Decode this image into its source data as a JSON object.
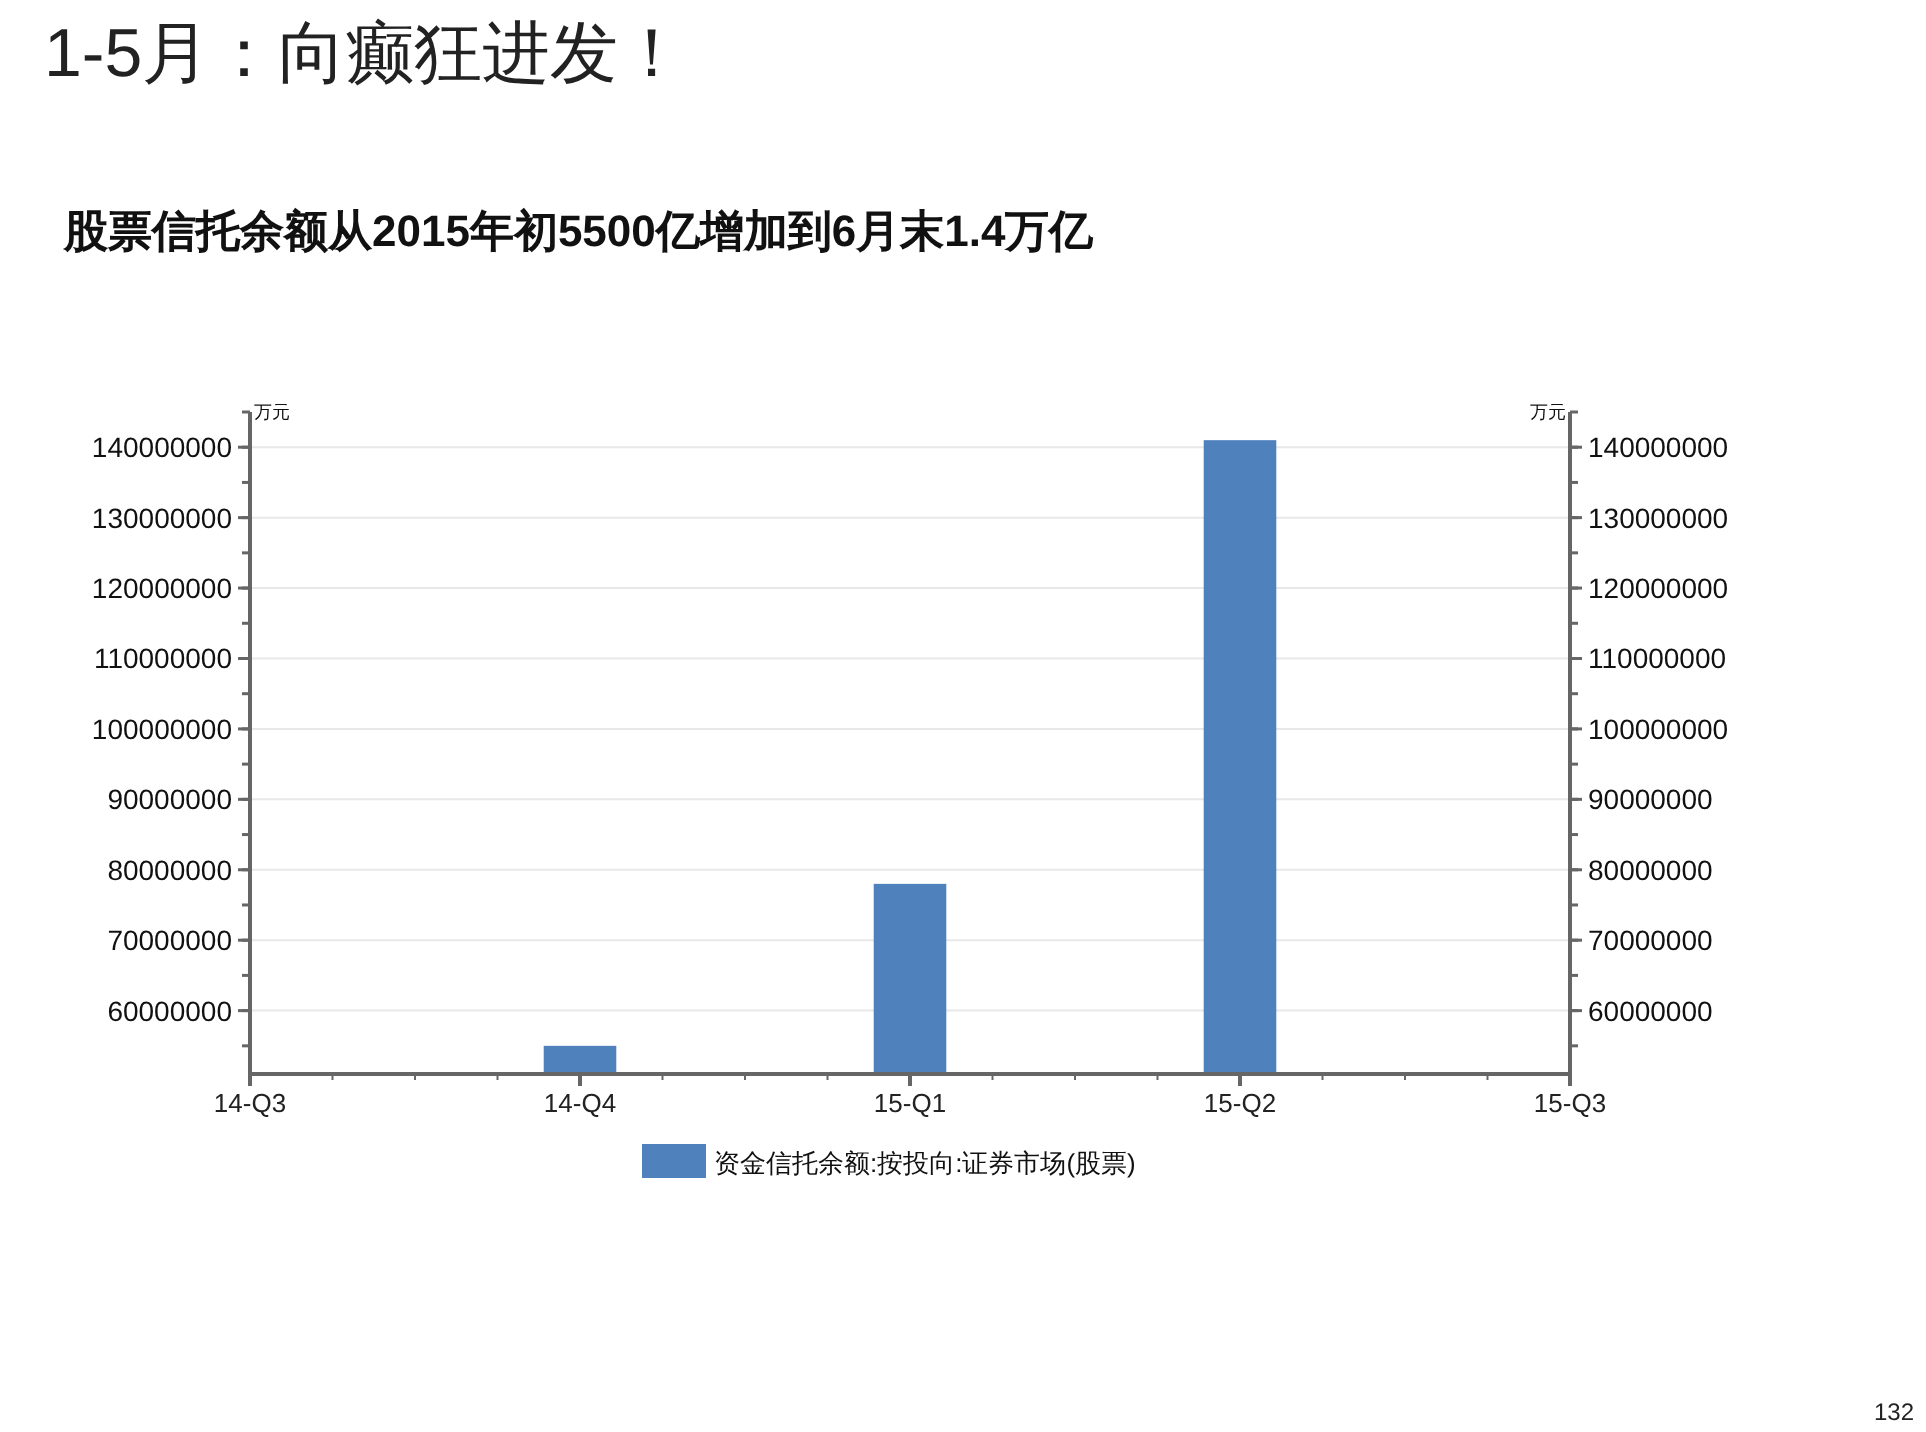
{
  "chart_data": {
    "type": "bar",
    "title": "1-5月：向癫狂进发！",
    "subtitle": "股票信托余额从2015年初5500亿增加到6月末1.4万亿",
    "ylabel": "万元",
    "y2label": "万元",
    "categories": [
      "14-Q3",
      "14-Q4",
      "15-Q1",
      "15-Q2",
      "15-Q3"
    ],
    "series": [
      {
        "name": "资金信托余额:按投向:证券市场(股票)",
        "color": "#4f81bd",
        "values": [
          null,
          55000000,
          78000000,
          141000000,
          null
        ]
      }
    ],
    "ylim": [
      51000000,
      145000000
    ],
    "yticks": [
      60000000,
      70000000,
      80000000,
      90000000,
      100000000,
      110000000,
      120000000,
      130000000,
      140000000
    ],
    "y2lim": [
      51000000,
      145000000
    ],
    "y2ticks": [
      60000000,
      70000000,
      80000000,
      90000000,
      100000000,
      110000000,
      120000000,
      130000000,
      140000000
    ],
    "grid": "y",
    "legend": "bottom",
    "annotations": [
      "132"
    ]
  }
}
